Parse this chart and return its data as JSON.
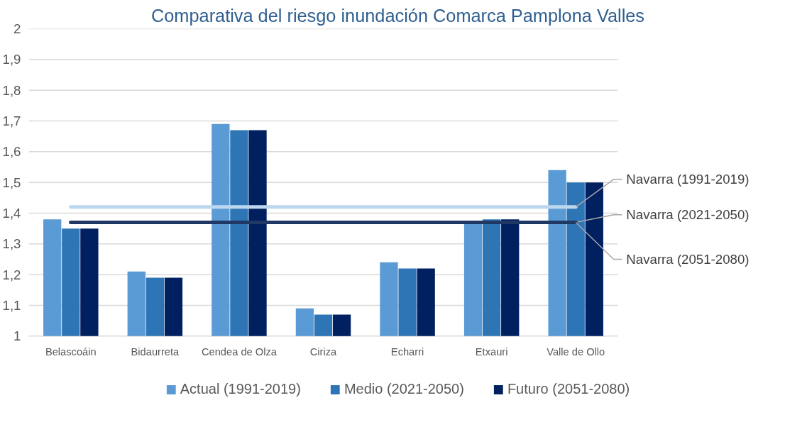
{
  "chart_data": {
    "type": "bar",
    "title": "Comparativa del riesgo inundación Comarca Pamplona Valles",
    "categories": [
      "Belascoáin",
      "Bidaurreta",
      "Cendea de Olza",
      "Ciriza",
      "Echarri",
      "Etxauri",
      "Valle de Ollo"
    ],
    "series": [
      {
        "name": "Actual (1991-2019)",
        "color": "#5b9bd5",
        "values": [
          1.38,
          1.21,
          1.69,
          1.09,
          1.24,
          1.37,
          1.54
        ]
      },
      {
        "name": "Medio (2021-2050)",
        "color": "#2e75b6",
        "values": [
          1.35,
          1.19,
          1.67,
          1.07,
          1.22,
          1.38,
          1.5
        ]
      },
      {
        "name": "Futuro (2051-2080)",
        "color": "#002060",
        "values": [
          1.35,
          1.19,
          1.67,
          1.07,
          1.22,
          1.38,
          1.5
        ]
      }
    ],
    "ylim": [
      1,
      2
    ],
    "yticks": [
      1,
      {
        "value": 1.1,
        "label": "1,1"
      },
      {
        "value": 1.2,
        "label": "1,2"
      },
      {
        "value": 1.3,
        "label": "1,3"
      },
      {
        "value": 1.4,
        "label": "1,4"
      },
      {
        "value": 1.5,
        "label": "1,5"
      },
      {
        "value": 1.6,
        "label": "1,6"
      },
      {
        "value": 1.7,
        "label": "1,7"
      },
      {
        "value": 1.8,
        "label": "1,8"
      },
      {
        "value": 1.9,
        "label": "1,9"
      },
      2
    ],
    "ref_lines": [
      {
        "axis": "y",
        "value": 1.42,
        "label": "Navarra (1991-2019)",
        "color": "#bdd7ee"
      },
      {
        "axis": "y",
        "value": 1.37,
        "label": "Navarra (2021-2050)",
        "color": "#2e75b6"
      },
      {
        "axis": "y",
        "value": 1.37,
        "label": "Navarra (2051-2080)",
        "color": "#203864"
      }
    ],
    "grid": "y",
    "legend": "bottom"
  }
}
